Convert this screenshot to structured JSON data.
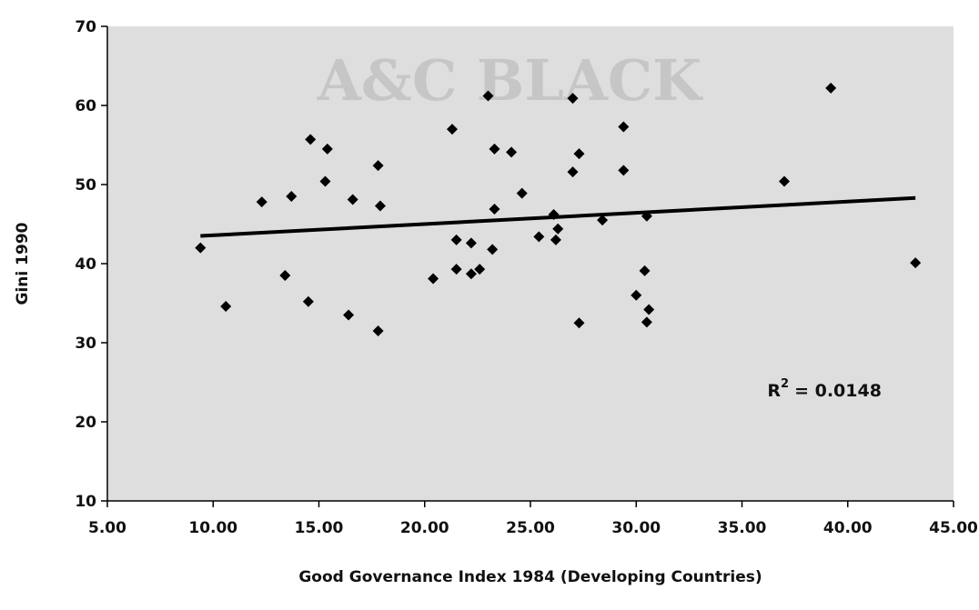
{
  "watermark": "A&C BLACK",
  "chart_data": {
    "type": "scatter",
    "xlabel": "Good Governance Index 1984 (Developing Countries)",
    "ylabel": "Gini 1990",
    "xlim": [
      5,
      45
    ],
    "ylim": [
      10,
      70
    ],
    "x_ticks": [
      "5.00",
      "10.00",
      "15.00",
      "20.00",
      "25.00",
      "30.00",
      "35.00",
      "40.00",
      "45.00"
    ],
    "y_ticks": [
      "10",
      "20",
      "30",
      "40",
      "50",
      "60",
      "70"
    ],
    "grid": false,
    "legend": "none",
    "background": "#dedede",
    "marker_color": "#000000",
    "points": [
      [
        9.4,
        42.0
      ],
      [
        10.6,
        34.6
      ],
      [
        12.3,
        47.8
      ],
      [
        13.4,
        38.5
      ],
      [
        13.7,
        48.5
      ],
      [
        14.5,
        35.2
      ],
      [
        14.6,
        55.7
      ],
      [
        15.3,
        50.4
      ],
      [
        15.4,
        54.5
      ],
      [
        16.4,
        33.5
      ],
      [
        16.6,
        48.1
      ],
      [
        17.8,
        52.4
      ],
      [
        17.8,
        31.5
      ],
      [
        17.9,
        47.3
      ],
      [
        20.4,
        38.1
      ],
      [
        21.3,
        57.0
      ],
      [
        21.5,
        39.3
      ],
      [
        21.5,
        43.0
      ],
      [
        22.2,
        42.6
      ],
      [
        22.2,
        38.7
      ],
      [
        22.6,
        39.3
      ],
      [
        23.0,
        61.2
      ],
      [
        23.2,
        41.8
      ],
      [
        23.3,
        54.5
      ],
      [
        23.3,
        46.9
      ],
      [
        24.1,
        54.1
      ],
      [
        24.6,
        48.9
      ],
      [
        25.4,
        43.4
      ],
      [
        26.1,
        46.2
      ],
      [
        26.2,
        43.0
      ],
      [
        26.3,
        44.4
      ],
      [
        27.0,
        60.9
      ],
      [
        27.0,
        51.6
      ],
      [
        27.3,
        53.9
      ],
      [
        27.3,
        32.5
      ],
      [
        28.4,
        45.5
      ],
      [
        29.4,
        57.3
      ],
      [
        29.4,
        51.8
      ],
      [
        30.0,
        36.0
      ],
      [
        30.4,
        39.1
      ],
      [
        30.5,
        46.0
      ],
      [
        30.5,
        32.6
      ],
      [
        30.6,
        34.2
      ],
      [
        37.0,
        50.4
      ],
      [
        39.2,
        62.2
      ],
      [
        43.2,
        40.1
      ]
    ],
    "trendline": {
      "x": [
        9.4,
        43.2
      ],
      "y": [
        43.5,
        48.3
      ]
    },
    "annotation": {
      "label": "R",
      "superscript": "2",
      "value": "= 0.0148",
      "x": 36.2,
      "y": 23.2
    }
  }
}
